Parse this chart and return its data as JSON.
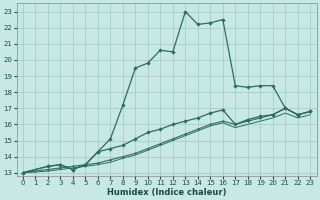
{
  "xlabel": "Humidex (Indice chaleur)",
  "xlim": [
    -0.5,
    23.5
  ],
  "ylim": [
    12.8,
    23.5
  ],
  "xticks": [
    0,
    1,
    2,
    3,
    4,
    5,
    6,
    7,
    8,
    9,
    10,
    11,
    12,
    13,
    14,
    15,
    16,
    17,
    18,
    19,
    20,
    21,
    22,
    23
  ],
  "yticks": [
    13,
    14,
    15,
    16,
    17,
    18,
    19,
    20,
    21,
    22,
    23
  ],
  "background_color": "#c8e8e4",
  "grid_color": "#a8ccca",
  "line_color": "#2a6e60",
  "series1_x": [
    0,
    2,
    3,
    4,
    5,
    6,
    7,
    8,
    9,
    10,
    11,
    12,
    13,
    14,
    15,
    16,
    17,
    18,
    19,
    20,
    21,
    22,
    23
  ],
  "series1_y": [
    13.0,
    13.4,
    13.5,
    13.2,
    13.5,
    14.3,
    15.1,
    17.2,
    19.5,
    19.8,
    20.6,
    20.5,
    23.0,
    22.2,
    22.3,
    22.5,
    18.4,
    18.3,
    18.4,
    18.4,
    17.0,
    16.6,
    16.8
  ],
  "series2_x": [
    0,
    2,
    3,
    4,
    5,
    6,
    7,
    8,
    9,
    10,
    11,
    12,
    13,
    14,
    15,
    16,
    17,
    18,
    19,
    20,
    21,
    22,
    23
  ],
  "series2_y": [
    13.0,
    13.4,
    13.5,
    13.2,
    13.5,
    14.3,
    14.5,
    14.7,
    15.1,
    15.5,
    15.7,
    16.0,
    16.2,
    16.4,
    16.7,
    16.9,
    16.0,
    16.3,
    16.5,
    16.6,
    17.0,
    16.6,
    16.8
  ],
  "series3_x": [
    0,
    1,
    2,
    3,
    4,
    5,
    6,
    7,
    8,
    9,
    10,
    11,
    12,
    13,
    14,
    15,
    16,
    17,
    18,
    19,
    20,
    21,
    22,
    23
  ],
  "series3_y": [
    13.0,
    13.1,
    13.2,
    13.3,
    13.4,
    13.5,
    13.6,
    13.8,
    14.0,
    14.2,
    14.5,
    14.8,
    15.1,
    15.4,
    15.7,
    16.0,
    16.2,
    16.0,
    16.2,
    16.4,
    16.6,
    17.0,
    16.6,
    16.8
  ],
  "series4_x": [
    0,
    1,
    2,
    3,
    4,
    5,
    6,
    7,
    8,
    9,
    10,
    11,
    12,
    13,
    14,
    15,
    16,
    17,
    18,
    19,
    20,
    21,
    22,
    23
  ],
  "series4_y": [
    13.0,
    13.05,
    13.1,
    13.2,
    13.3,
    13.4,
    13.5,
    13.65,
    13.9,
    14.1,
    14.4,
    14.7,
    15.0,
    15.3,
    15.6,
    15.9,
    16.1,
    15.8,
    16.0,
    16.2,
    16.4,
    16.7,
    16.4,
    16.6
  ]
}
